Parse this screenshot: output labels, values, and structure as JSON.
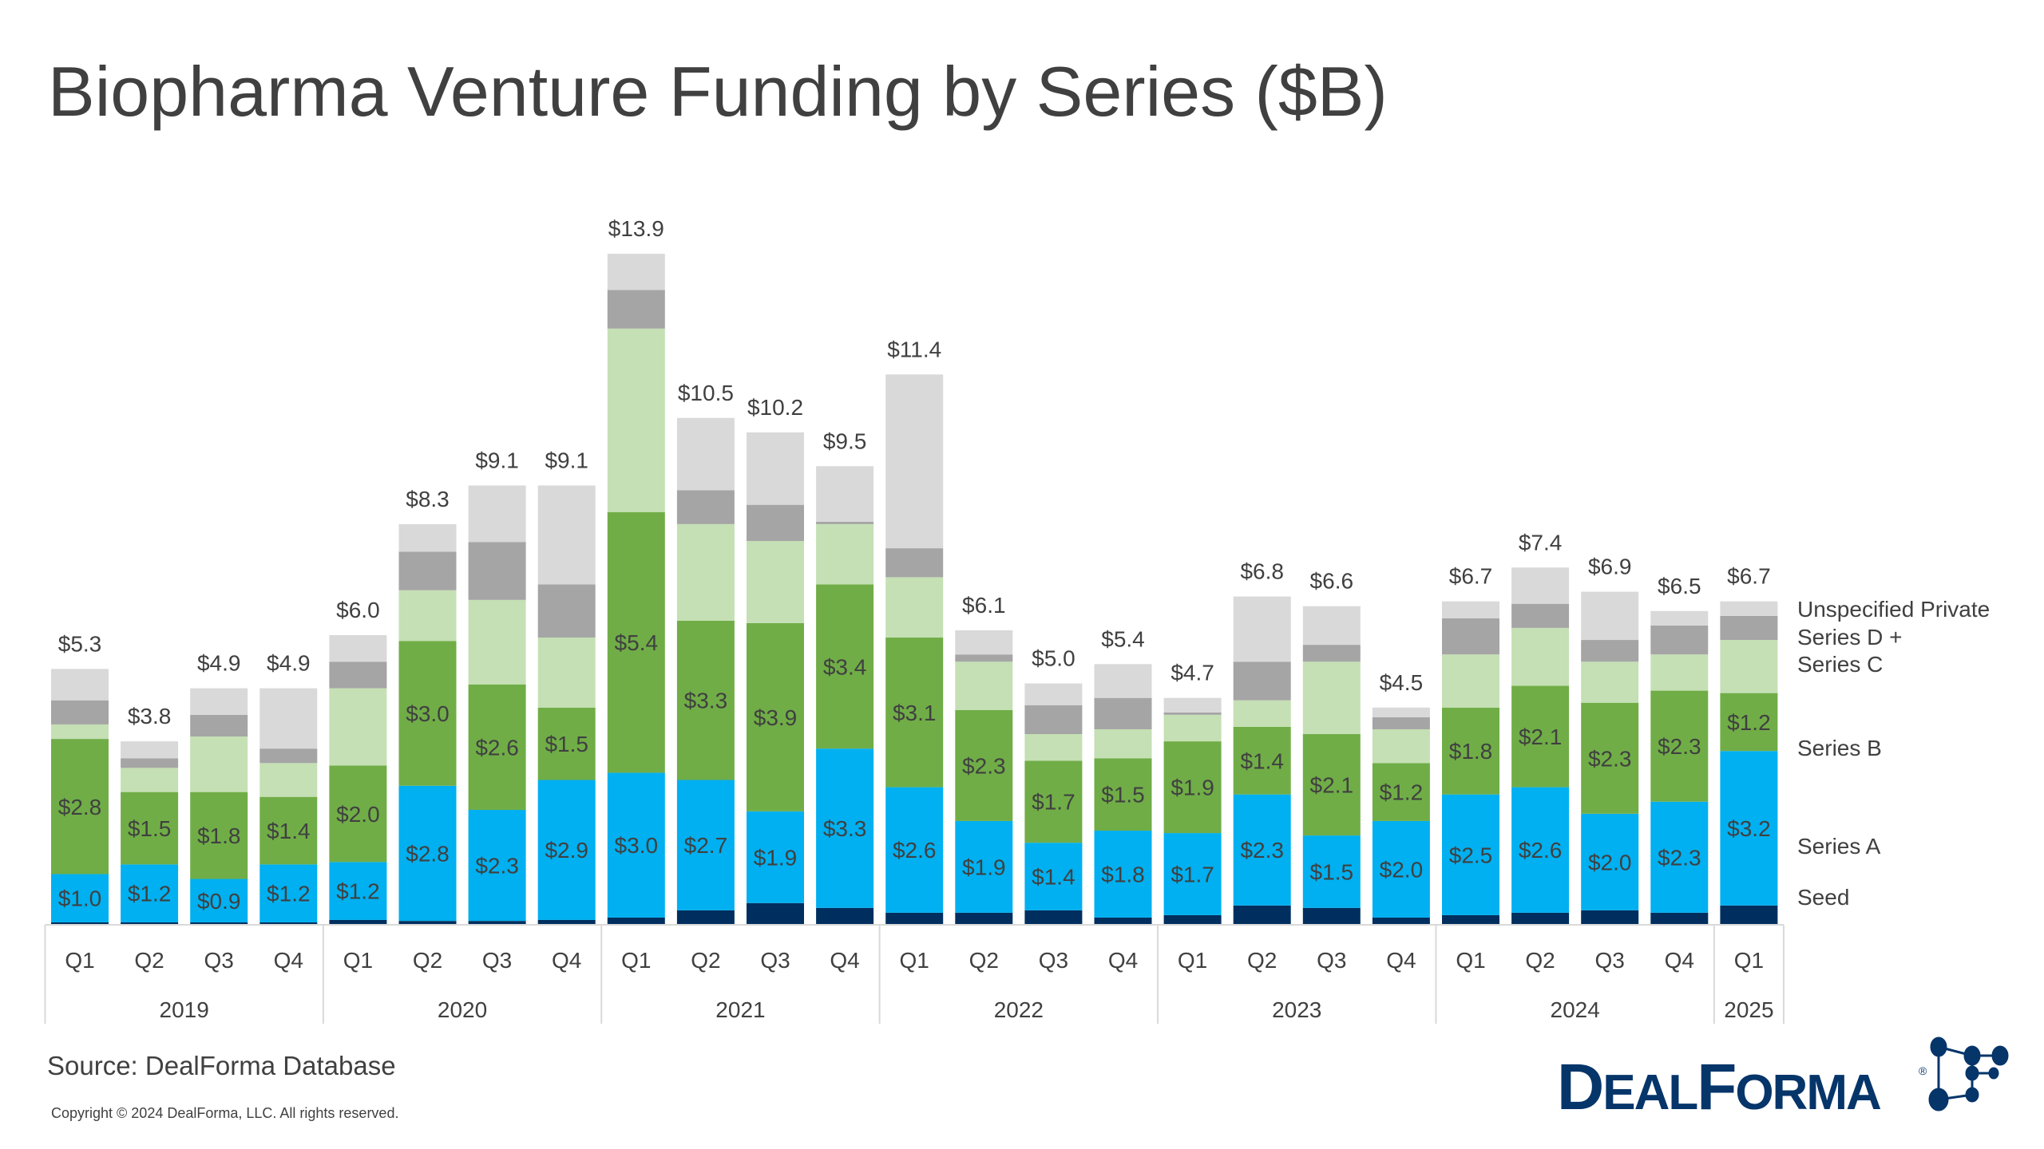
{
  "title": "Biopharma Venture Funding by Series ($B)",
  "source": "Source: DealForma Database",
  "copyright": "Copyright © 2024 DealForma, LLC. All rights reserved.",
  "logo": {
    "text_big1": "D",
    "text_small1": "EAL",
    "text_big2": "F",
    "text_small2": "ORMA",
    "registered": "®",
    "color": "#06356a"
  },
  "chart_data": {
    "type": "bar",
    "stacked": true,
    "title": "Biopharma Venture Funding by Series ($B)",
    "ylim": [
      0,
      14
    ],
    "grid": false,
    "legend_placement": "right",
    "series_names": [
      "Seed",
      "Series A",
      "Series B",
      "Series C",
      "Series D +",
      "Unspecified Private"
    ],
    "colors": [
      "#002f5f",
      "#00b0f0",
      "#70ad47",
      "#c5e0b4",
      "#a5a5a5",
      "#d9d9d9"
    ],
    "labeled_series": [
      1,
      2
    ],
    "years": [
      {
        "label": "2019",
        "quarters": 4
      },
      {
        "label": "2020",
        "quarters": 4
      },
      {
        "label": "2021",
        "quarters": 4
      },
      {
        "label": "2022",
        "quarters": 4
      },
      {
        "label": "2023",
        "quarters": 4
      },
      {
        "label": "2024",
        "quarters": 4
      },
      {
        "label": "2025",
        "quarters": 1
      }
    ],
    "categories": [
      "Q1",
      "Q2",
      "Q3",
      "Q4",
      "Q1",
      "Q2",
      "Q3",
      "Q4",
      "Q1",
      "Q2",
      "Q3",
      "Q4",
      "Q1",
      "Q2",
      "Q3",
      "Q4",
      "Q1",
      "Q2",
      "Q3",
      "Q4",
      "Q1",
      "Q2",
      "Q3",
      "Q4",
      "Q1"
    ],
    "totals": [
      "$5.3",
      "$3.8",
      "$4.9",
      "$4.9",
      "$6.0",
      "$8.3",
      "$9.1",
      "$9.1",
      "$13.9",
      "$10.5",
      "$10.2",
      "$9.5",
      "$11.4",
      "$6.1",
      "$5.0",
      "$5.4",
      "$4.7",
      "$6.8",
      "$6.6",
      "$4.5",
      "$6.7",
      "$7.4",
      "$6.9",
      "$6.5",
      "$6.7"
    ],
    "values": [
      [
        0.05,
        1.0,
        2.8,
        0.3,
        0.5,
        0.65
      ],
      [
        0.05,
        1.2,
        1.5,
        0.5,
        0.2,
        0.35
      ],
      [
        0.05,
        0.9,
        1.8,
        1.15,
        0.45,
        0.55
      ],
      [
        0.05,
        1.2,
        1.4,
        0.7,
        0.3,
        1.25
      ],
      [
        0.1,
        1.2,
        2.0,
        1.6,
        0.55,
        0.55
      ],
      [
        0.08,
        2.8,
        3.0,
        1.05,
        0.8,
        0.57
      ],
      [
        0.08,
        2.3,
        2.6,
        1.75,
        1.2,
        1.17
      ],
      [
        0.1,
        2.9,
        1.5,
        1.45,
        1.1,
        2.05
      ],
      [
        0.15,
        3.0,
        5.4,
        3.8,
        0.8,
        0.75
      ],
      [
        0.3,
        2.7,
        3.3,
        2.0,
        0.7,
        1.5
      ],
      [
        0.45,
        1.9,
        3.9,
        1.7,
        0.75,
        1.5
      ],
      [
        0.35,
        3.3,
        3.4,
        1.25,
        0.05,
        1.15
      ],
      [
        0.25,
        2.6,
        3.1,
        1.25,
        0.6,
        3.6
      ],
      [
        0.25,
        1.9,
        2.3,
        1.0,
        0.15,
        0.5
      ],
      [
        0.3,
        1.4,
        1.7,
        0.55,
        0.6,
        0.45
      ],
      [
        0.15,
        1.8,
        1.5,
        0.6,
        0.65,
        0.7
      ],
      [
        0.2,
        1.7,
        1.9,
        0.55,
        0.05,
        0.3
      ],
      [
        0.4,
        2.3,
        1.4,
        0.55,
        0.8,
        1.35
      ],
      [
        0.35,
        1.5,
        2.1,
        1.5,
        0.35,
        0.8
      ],
      [
        0.15,
        2.0,
        1.2,
        0.7,
        0.25,
        0.2
      ],
      [
        0.2,
        2.5,
        1.8,
        1.1,
        0.75,
        0.35
      ],
      [
        0.25,
        2.6,
        2.1,
        1.2,
        0.5,
        0.75
      ],
      [
        0.3,
        2.0,
        2.3,
        0.85,
        0.45,
        1.0
      ],
      [
        0.25,
        2.3,
        2.3,
        0.75,
        0.6,
        0.3
      ],
      [
        0.4,
        3.2,
        1.2,
        1.1,
        0.5,
        0.3
      ]
    ],
    "labels": [
      [
        "",
        "$1.0",
        "$2.8",
        "",
        "",
        ""
      ],
      [
        "",
        "$1.2",
        "$1.5",
        "",
        "",
        ""
      ],
      [
        "",
        "$0.9",
        "$1.8",
        "",
        "",
        ""
      ],
      [
        "",
        "$1.2",
        "$1.4",
        "",
        "",
        ""
      ],
      [
        "",
        "$1.2",
        "$2.0",
        "",
        "",
        ""
      ],
      [
        "",
        "$2.8",
        "$3.0",
        "",
        "",
        ""
      ],
      [
        "",
        "$2.3",
        "$2.6",
        "",
        "",
        ""
      ],
      [
        "",
        "$2.9",
        "$1.5",
        "",
        "",
        ""
      ],
      [
        "",
        "$3.0",
        "$5.4",
        "",
        "",
        ""
      ],
      [
        "",
        "$2.7",
        "$3.3",
        "",
        "",
        ""
      ],
      [
        "",
        "$1.9",
        "$3.9",
        "",
        "",
        ""
      ],
      [
        "",
        "$3.3",
        "$3.4",
        "",
        "",
        ""
      ],
      [
        "",
        "$2.6",
        "$3.1",
        "",
        "",
        ""
      ],
      [
        "",
        "$1.9",
        "$2.3",
        "",
        "",
        ""
      ],
      [
        "",
        "$1.4",
        "$1.7",
        "",
        "",
        ""
      ],
      [
        "",
        "$1.8",
        "$1.5",
        "",
        "",
        ""
      ],
      [
        "",
        "$1.7",
        "$1.9",
        "",
        "",
        ""
      ],
      [
        "",
        "$2.3",
        "$1.4",
        "",
        "",
        ""
      ],
      [
        "",
        "$1.5",
        "$2.1",
        "",
        "",
        ""
      ],
      [
        "",
        "$2.0",
        "$1.2",
        "",
        "",
        ""
      ],
      [
        "",
        "$2.5",
        "$1.8",
        "",
        "",
        ""
      ],
      [
        "",
        "$2.6",
        "$2.1",
        "",
        "",
        ""
      ],
      [
        "",
        "$2.0",
        "$2.3",
        "",
        "",
        ""
      ],
      [
        "",
        "$2.3",
        "$2.3",
        "",
        "",
        ""
      ],
      [
        "",
        "$3.2",
        "$1.2",
        "",
        "",
        ""
      ]
    ]
  }
}
